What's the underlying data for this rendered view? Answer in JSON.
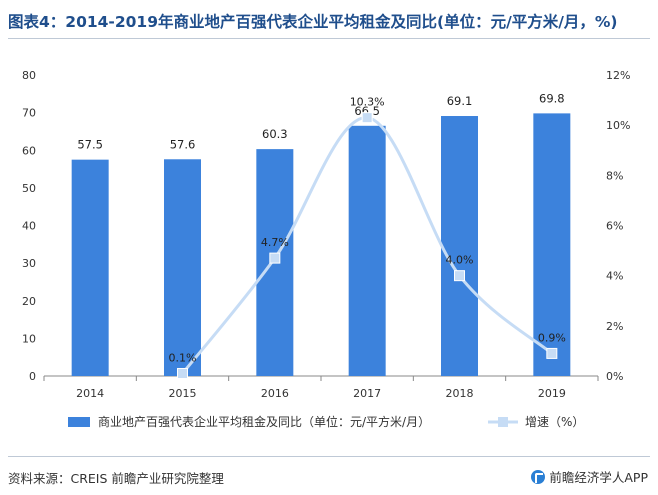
{
  "title": "图表4：2014-2019年商业地产百强代表企业平均租金及同比(单位：元/平方米/月，%)",
  "source": "资料来源：CREIS 前瞻产业研究院整理",
  "brand": "前瞻经济学人APP",
  "colors": {
    "bar": "#3c82dc",
    "line": "#c6dcf5",
    "marker": "#c6dcf5",
    "axis": "#888888"
  },
  "chart_data": {
    "type": "bar",
    "categories": [
      "2014",
      "2015",
      "2016",
      "2017",
      "2018",
      "2019"
    ],
    "series": [
      {
        "name": "商业地产百强代表企业平均租金及同比（单位：元/平方米/月）",
        "type": "bar",
        "axis": "left",
        "values": [
          57.5,
          57.6,
          60.3,
          66.5,
          69.1,
          69.8
        ],
        "labels": [
          "57.5",
          "57.6",
          "60.3",
          "66.5",
          "69.1",
          "69.8"
        ]
      },
      {
        "name": "增速（%）",
        "type": "line",
        "axis": "right",
        "x": [
          "2015",
          "2016",
          "2017",
          "2018",
          "2019"
        ],
        "values": [
          0.1,
          4.7,
          10.3,
          4.0,
          0.9
        ],
        "labels": [
          "0.1%",
          "4.7%",
          "10.3%",
          "4.0%",
          "0.9%"
        ]
      }
    ],
    "left_axis": {
      "ylim": [
        0,
        80
      ],
      "ticks": [
        "0",
        "10",
        "20",
        "30",
        "40",
        "50",
        "60",
        "70",
        "80"
      ]
    },
    "right_axis": {
      "ylim": [
        0,
        12
      ],
      "ticks": [
        "0%",
        "2%",
        "4%",
        "6%",
        "8%",
        "10%",
        "12%"
      ]
    },
    "grid": false,
    "legend_position": "bottom"
  }
}
